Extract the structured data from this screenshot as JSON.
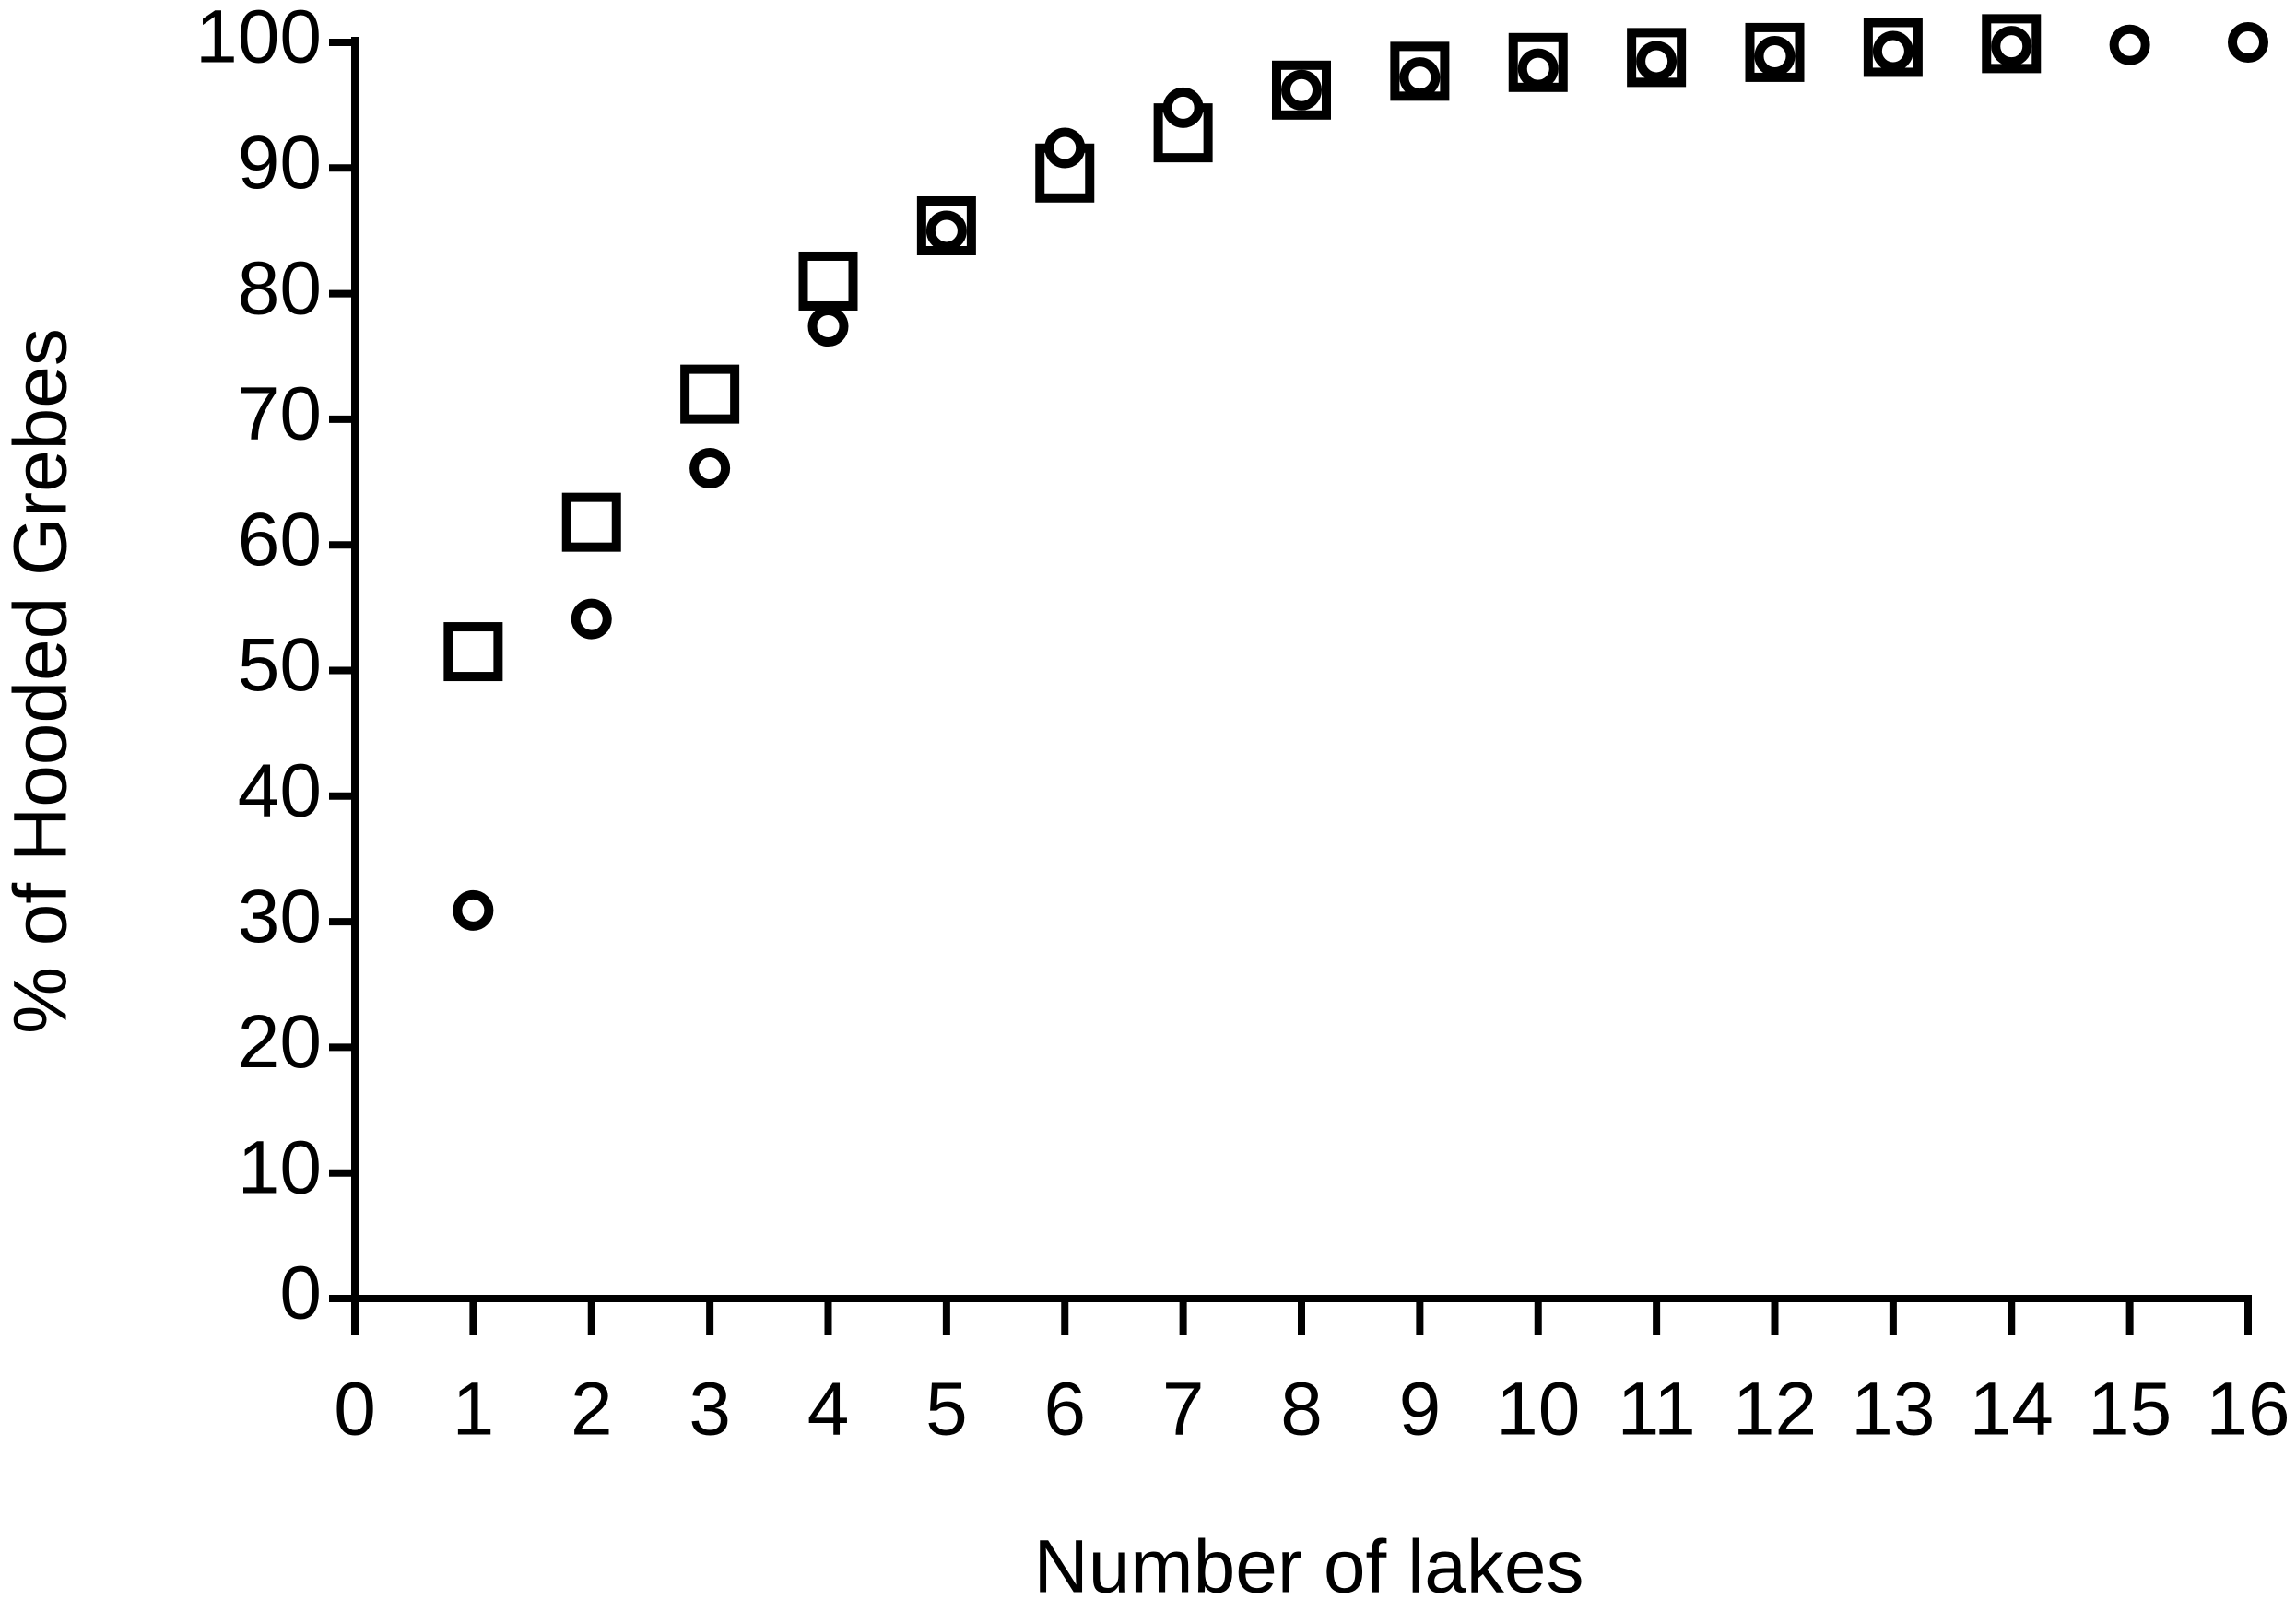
{
  "chart_data": {
    "type": "scatter",
    "x_label": "Number of lakes",
    "y_label": "% of Hooded Grebes",
    "x": [
      1,
      2,
      3,
      4,
      5,
      6,
      7,
      8,
      9,
      10,
      11,
      12,
      13,
      14,
      15,
      16
    ],
    "series": [
      {
        "marker": "square",
        "color": "#000000",
        "values": [
          51.5,
          61.8,
          72,
          81,
          85.4,
          89.6,
          92.8,
          96.2,
          97.7,
          98.4,
          98.8,
          99.2,
          99.6,
          99.9,
          null,
          null
        ]
      },
      {
        "marker": "circle",
        "color": "#000000",
        "values": [
          30.9,
          54.1,
          66.1,
          77.4,
          85,
          91.6,
          94.8,
          96.2,
          97.2,
          97.9,
          98.5,
          98.9,
          99.3,
          99.7,
          99.8,
          100
        ]
      }
    ],
    "xlim": [
      0,
      16
    ],
    "xticks": [
      0,
      1,
      2,
      3,
      4,
      5,
      6,
      7,
      8,
      9,
      10,
      11,
      12,
      13,
      14,
      15,
      16
    ],
    "ylim": [
      0,
      100
    ],
    "yticks": [
      0,
      10,
      20,
      30,
      40,
      50,
      60,
      70,
      80,
      90,
      100
    ],
    "grid": false
  }
}
